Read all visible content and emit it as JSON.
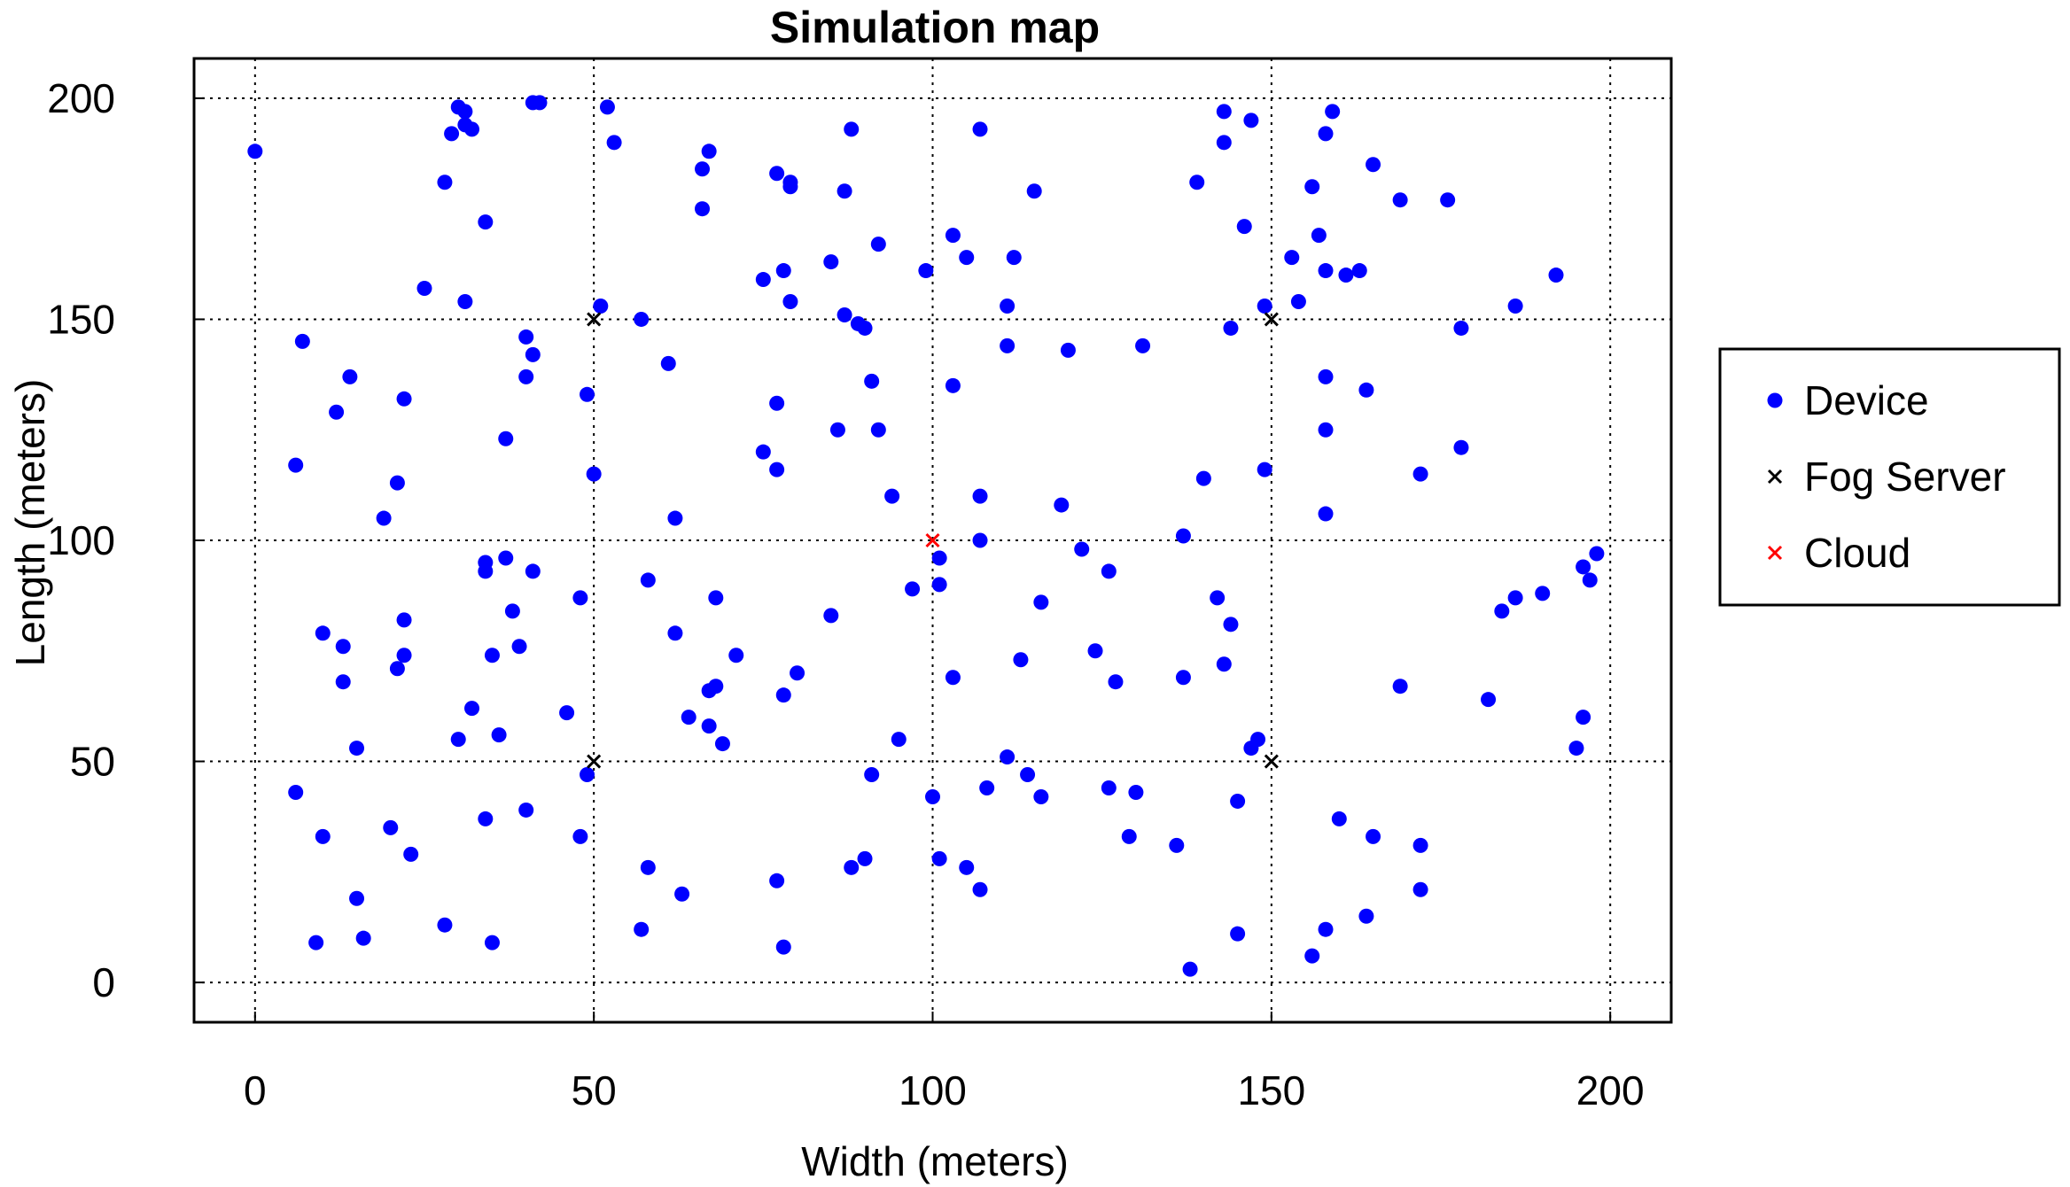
{
  "chart_data": {
    "type": "scatter",
    "title": "Simulation map",
    "xlabel": "Width (meters)",
    "ylabel": "Length (meters)",
    "xlim": [
      -9,
      209
    ],
    "ylim": [
      -9,
      209
    ],
    "xticks": [
      0,
      50,
      100,
      150,
      200
    ],
    "yticks": [
      0,
      50,
      100,
      150,
      200
    ],
    "grid": true,
    "grid_style": "dotted",
    "legend_position": "right-outside",
    "series": [
      {
        "name": "Device",
        "marker": "dot",
        "color": "#0000ff",
        "points": [
          [
            0,
            188
          ],
          [
            6,
            117
          ],
          [
            7,
            145
          ],
          [
            6,
            43
          ],
          [
            9,
            9
          ],
          [
            10,
            79
          ],
          [
            10,
            33
          ],
          [
            12,
            129
          ],
          [
            13,
            76
          ],
          [
            13,
            68
          ],
          [
            14,
            137
          ],
          [
            15,
            53
          ],
          [
            15,
            19
          ],
          [
            16,
            10
          ],
          [
            19,
            105
          ],
          [
            20,
            35
          ],
          [
            21,
            113
          ],
          [
            21,
            71
          ],
          [
            22,
            74
          ],
          [
            22,
            82
          ],
          [
            22,
            132
          ],
          [
            23,
            29
          ],
          [
            25,
            157
          ],
          [
            28,
            181
          ],
          [
            28,
            13
          ],
          [
            29,
            192
          ],
          [
            30,
            55
          ],
          [
            30,
            198
          ],
          [
            31,
            197
          ],
          [
            31,
            154
          ],
          [
            31,
            194
          ],
          [
            32,
            193
          ],
          [
            32,
            62
          ],
          [
            34,
            172
          ],
          [
            34,
            93
          ],
          [
            34,
            95
          ],
          [
            34,
            37
          ],
          [
            35,
            74
          ],
          [
            35,
            9
          ],
          [
            36,
            56
          ],
          [
            37,
            96
          ],
          [
            37,
            123
          ],
          [
            38,
            84
          ],
          [
            39,
            76
          ],
          [
            40,
            39
          ],
          [
            40,
            137
          ],
          [
            40,
            146
          ],
          [
            41,
            142
          ],
          [
            41,
            93
          ],
          [
            41,
            199
          ],
          [
            42,
            199
          ],
          [
            46,
            61
          ],
          [
            48,
            87
          ],
          [
            48,
            33
          ],
          [
            49,
            133
          ],
          [
            49,
            47
          ],
          [
            50,
            115
          ],
          [
            51,
            153
          ],
          [
            52,
            198
          ],
          [
            53,
            190
          ],
          [
            57,
            150
          ],
          [
            57,
            12
          ],
          [
            58,
            91
          ],
          [
            58,
            26
          ],
          [
            61,
            140
          ],
          [
            62,
            79
          ],
          [
            62,
            105
          ],
          [
            63,
            20
          ],
          [
            64,
            60
          ],
          [
            66,
            184
          ],
          [
            66,
            175
          ],
          [
            67,
            188
          ],
          [
            67,
            58
          ],
          [
            67,
            66
          ],
          [
            68,
            87
          ],
          [
            68,
            67
          ],
          [
            69,
            54
          ],
          [
            71,
            74
          ],
          [
            75,
            159
          ],
          [
            75,
            120
          ],
          [
            77,
            183
          ],
          [
            77,
            23
          ],
          [
            77,
            116
          ],
          [
            77,
            131
          ],
          [
            78,
            8
          ],
          [
            78,
            161
          ],
          [
            78,
            65
          ],
          [
            79,
            180
          ],
          [
            79,
            181
          ],
          [
            79,
            154
          ],
          [
            80,
            70
          ],
          [
            85,
            163
          ],
          [
            85,
            83
          ],
          [
            86,
            125
          ],
          [
            87,
            151
          ],
          [
            87,
            179
          ],
          [
            88,
            193
          ],
          [
            88,
            26
          ],
          [
            89,
            149
          ],
          [
            90,
            148
          ],
          [
            90,
            28
          ],
          [
            91,
            136
          ],
          [
            91,
            47
          ],
          [
            92,
            125
          ],
          [
            92,
            167
          ],
          [
            94,
            110
          ],
          [
            95,
            55
          ],
          [
            97,
            89
          ],
          [
            99,
            161
          ],
          [
            100,
            42
          ],
          [
            101,
            96
          ],
          [
            101,
            90
          ],
          [
            101,
            28
          ],
          [
            103,
            135
          ],
          [
            103,
            69
          ],
          [
            103,
            169
          ],
          [
            105,
            164
          ],
          [
            105,
            26
          ],
          [
            107,
            110
          ],
          [
            107,
            100
          ],
          [
            107,
            193
          ],
          [
            107,
            21
          ],
          [
            108,
            44
          ],
          [
            111,
            144
          ],
          [
            111,
            51
          ],
          [
            111,
            153
          ],
          [
            112,
            164
          ],
          [
            113,
            73
          ],
          [
            114,
            47
          ],
          [
            115,
            179
          ],
          [
            116,
            86
          ],
          [
            116,
            42
          ],
          [
            119,
            108
          ],
          [
            120,
            143
          ],
          [
            122,
            98
          ],
          [
            124,
            75
          ],
          [
            126,
            44
          ],
          [
            126,
            93
          ],
          [
            127,
            68
          ],
          [
            129,
            33
          ],
          [
            130,
            43
          ],
          [
            131,
            144
          ],
          [
            136,
            31
          ],
          [
            137,
            69
          ],
          [
            137,
            101
          ],
          [
            138,
            3
          ],
          [
            139,
            181
          ],
          [
            140,
            114
          ],
          [
            142,
            87
          ],
          [
            143,
            72
          ],
          [
            143,
            197
          ],
          [
            143,
            190
          ],
          [
            144,
            81
          ],
          [
            144,
            148
          ],
          [
            145,
            41
          ],
          [
            145,
            11
          ],
          [
            146,
            171
          ],
          [
            147,
            195
          ],
          [
            147,
            53
          ],
          [
            148,
            55
          ],
          [
            149,
            153
          ],
          [
            149,
            116
          ],
          [
            153,
            164
          ],
          [
            154,
            154
          ],
          [
            156,
            6
          ],
          [
            156,
            180
          ],
          [
            157,
            169
          ],
          [
            158,
            106
          ],
          [
            158,
            137
          ],
          [
            158,
            192
          ],
          [
            159,
            197
          ],
          [
            158,
            12
          ],
          [
            158,
            125
          ],
          [
            158,
            161
          ],
          [
            160,
            37
          ],
          [
            161,
            160
          ],
          [
            163,
            161
          ],
          [
            164,
            15
          ],
          [
            164,
            134
          ],
          [
            165,
            33
          ],
          [
            165,
            185
          ],
          [
            169,
            177
          ],
          [
            169,
            67
          ],
          [
            172,
            31
          ],
          [
            172,
            115
          ],
          [
            172,
            21
          ],
          [
            176,
            177
          ],
          [
            178,
            121
          ],
          [
            178,
            148
          ],
          [
            182,
            64
          ],
          [
            184,
            84
          ],
          [
            186,
            153
          ],
          [
            186,
            87
          ],
          [
            190,
            88
          ],
          [
            192,
            160
          ],
          [
            195,
            53
          ],
          [
            196,
            94
          ],
          [
            196,
            60
          ],
          [
            197,
            91
          ],
          [
            198,
            97
          ]
        ]
      },
      {
        "name": "Fog Server",
        "marker": "x",
        "color": "#000000",
        "points": [
          [
            50,
            150
          ],
          [
            150,
            150
          ],
          [
            50,
            50
          ],
          [
            150,
            50
          ]
        ]
      },
      {
        "name": "Cloud",
        "marker": "x",
        "color": "#ff0000",
        "points": [
          [
            100,
            100
          ]
        ]
      }
    ]
  }
}
